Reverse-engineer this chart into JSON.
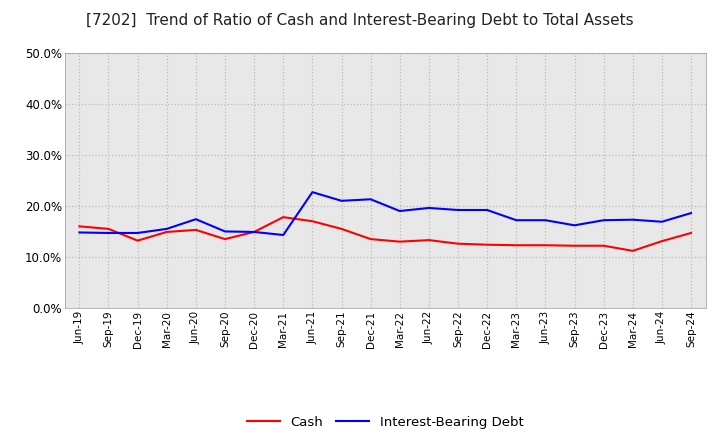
{
  "title": "[7202]  Trend of Ratio of Cash and Interest-Bearing Debt to Total Assets",
  "x_labels": [
    "Jun-19",
    "Sep-19",
    "Dec-19",
    "Mar-20",
    "Jun-20",
    "Sep-20",
    "Dec-20",
    "Mar-21",
    "Jun-21",
    "Sep-21",
    "Dec-21",
    "Mar-22",
    "Jun-22",
    "Sep-22",
    "Dec-22",
    "Mar-23",
    "Jun-23",
    "Sep-23",
    "Dec-23",
    "Mar-24",
    "Jun-24",
    "Sep-24"
  ],
  "cash": [
    0.16,
    0.155,
    0.132,
    0.149,
    0.153,
    0.135,
    0.149,
    0.178,
    0.17,
    0.155,
    0.135,
    0.13,
    0.133,
    0.126,
    0.124,
    0.123,
    0.123,
    0.122,
    0.122,
    0.112,
    0.131,
    0.147
  ],
  "ibd": [
    0.148,
    0.147,
    0.147,
    0.155,
    0.174,
    0.15,
    0.149,
    0.143,
    0.227,
    0.21,
    0.213,
    0.19,
    0.196,
    0.192,
    0.192,
    0.172,
    0.172,
    0.162,
    0.172,
    0.173,
    0.169,
    0.186
  ],
  "cash_color": "#ff0000",
  "ibd_color": "#0000ff",
  "ylim": [
    0.0,
    0.5
  ],
  "yticks": [
    0.0,
    0.1,
    0.2,
    0.3,
    0.4,
    0.5
  ],
  "background_color": "#ffffff",
  "plot_bg_color": "#e8e8e8",
  "grid_color": "#bbbbbb",
  "title_fontsize": 11,
  "legend_cash": "Cash",
  "legend_ibd": "Interest-Bearing Debt"
}
